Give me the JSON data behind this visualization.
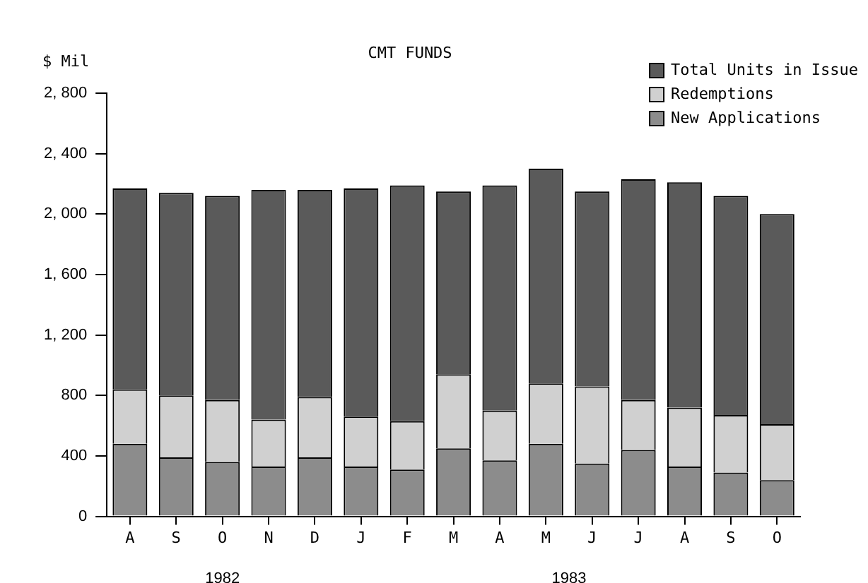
{
  "chart_data": {
    "type": "bar",
    "title": "CMT FUNDS",
    "ylabel": "$ Mil",
    "stacked": true,
    "legend": "top right",
    "grid": false,
    "categories": [
      "A",
      "S",
      "O",
      "N",
      "D",
      "J",
      "F",
      "M",
      "A",
      "M",
      "J",
      "J",
      "A",
      "S",
      "O"
    ],
    "annotations": [
      "1982",
      "1983"
    ],
    "ylim": [
      0,
      2800
    ],
    "yticks": [
      0,
      400,
      800,
      {
        "value": 1200,
        "label": "1, 200"
      },
      {
        "value": 1600,
        "label": "1, 600"
      },
      {
        "value": 2000,
        "label": "2, 000"
      },
      {
        "value": 2400,
        "label": "2, 400"
      },
      {
        "value": 2800,
        "label": "2, 800"
      }
    ],
    "series": [
      {
        "name": "New Applications",
        "color": "#8c8c8c",
        "values": [
          480,
          390,
          360,
          330,
          390,
          330,
          310,
          450,
          370,
          480,
          350,
          440,
          330,
          290,
          240
        ]
      },
      {
        "name": "Redemptions",
        "color": "#d0d0d0",
        "values": [
          360,
          410,
          410,
          310,
          400,
          330,
          320,
          490,
          330,
          400,
          510,
          330,
          390,
          380,
          370
        ]
      },
      {
        "name": "Total Units in Issue",
        "color": "#5a5a5a",
        "values": [
          1330,
          1340,
          1350,
          1520,
          1370,
          1510,
          1560,
          1210,
          1490,
          1420,
          1290,
          1460,
          1490,
          1450,
          1390
        ]
      }
    ]
  }
}
